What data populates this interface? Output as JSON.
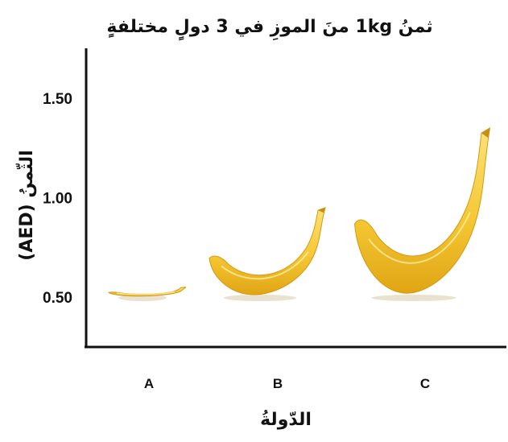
{
  "chart_data": {
    "type": "bar",
    "title": "ثمنُ 1kg منَ الموزِ في 3 دولٍ مختلفةٍ",
    "xlabel": "الدّولةُ",
    "ylabel": "الثّمنُ (AED)",
    "categories": [
      "A",
      "B",
      "C"
    ],
    "values": [
      0.55,
      0.95,
      1.35
    ],
    "yticks": [
      "0.50",
      "1.00",
      "1.50"
    ],
    "ylim": [
      0.25,
      1.75
    ],
    "grid": false,
    "bar_color": "#f2c12e",
    "mark_style": "banana-pictogram"
  }
}
